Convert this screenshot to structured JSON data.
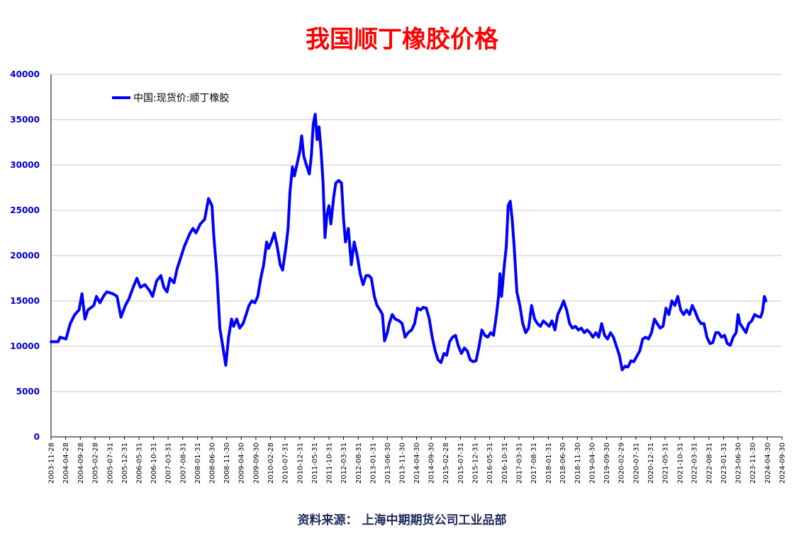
{
  "colors": {
    "title": "#ff0000",
    "series": "#0000ff",
    "yaxis_labels": "#0000cc",
    "grid": "#c8c8c8",
    "source": "#1f2a5a"
  },
  "chart_data": {
    "type": "line",
    "title": "我国顺丁橡胶价格",
    "source": "资料来源：  上海中期期货公司工业品部",
    "xlabel": "",
    "ylabel": "",
    "ylim": [
      0,
      40000
    ],
    "yticks": [
      0,
      5000,
      10000,
      15000,
      20000,
      25000,
      30000,
      35000,
      40000
    ],
    "xlim": [
      "2003-11-28",
      "2024-09-30"
    ],
    "xticks": [
      "2003-11-28",
      "2004-04-28",
      "2004-09-28",
      "2005-02-28",
      "2005-07-31",
      "2005-12-31",
      "2006-05-31",
      "2006-10-31",
      "2007-03-31",
      "2007-08-31",
      "2008-01-31",
      "2008-06-30",
      "2008-11-30",
      "2009-04-30",
      "2009-09-30",
      "2010-02-28",
      "2010-07-31",
      "2010-12-31",
      "2011-05-31",
      "2011-10-31",
      "2012-03-31",
      "2012-08-31",
      "2013-01-31",
      "2013-06-30",
      "2013-11-30",
      "2014-04-30",
      "2014-09-30",
      "2015-02-28",
      "2015-07-31",
      "2015-12-31",
      "2016-05-31",
      "2016-10-31",
      "2017-03-31",
      "2017-08-31",
      "2018-01-31",
      "2018-06-30",
      "2018-11-30",
      "2019-04-30",
      "2019-09-30",
      "2020-02-29",
      "2020-07-31",
      "2020-12-31",
      "2021-05-31",
      "2021-10-31",
      "2022-03-31",
      "2022-08-31",
      "2023-01-31",
      "2023-06-30",
      "2023-11-30",
      "2024-04-30",
      "2024-09-30"
    ],
    "grid": true,
    "legend": "top-left",
    "series": [
      {
        "name": "中国:现货价:顺丁橡胶",
        "points": [
          [
            "2003-11-28",
            10500
          ],
          [
            "2004-02-10",
            10500
          ],
          [
            "2004-03-01",
            11000
          ],
          [
            "2004-05-01",
            10800
          ],
          [
            "2004-06-15",
            12500
          ],
          [
            "2004-08-01",
            13500
          ],
          [
            "2004-09-15",
            14000
          ],
          [
            "2004-10-15",
            15800
          ],
          [
            "2004-11-15",
            13000
          ],
          [
            "2004-12-15",
            14000
          ],
          [
            "2005-02-15",
            14500
          ],
          [
            "2005-03-15",
            15500
          ],
          [
            "2005-04-20",
            14800
          ],
          [
            "2005-06-01",
            15600
          ],
          [
            "2005-07-01",
            16000
          ],
          [
            "2005-09-01",
            15800
          ],
          [
            "2005-10-15",
            15500
          ],
          [
            "2005-11-25",
            13200
          ],
          [
            "2006-01-10",
            14500
          ],
          [
            "2006-02-15",
            15200
          ],
          [
            "2006-04-01",
            16500
          ],
          [
            "2006-05-10",
            17500
          ],
          [
            "2006-06-15",
            16500
          ],
          [
            "2006-08-01",
            16800
          ],
          [
            "2006-09-15",
            16200
          ],
          [
            "2006-10-20",
            15500
          ],
          [
            "2006-12-01",
            17200
          ],
          [
            "2007-01-15",
            17800
          ],
          [
            "2007-02-15",
            16500
          ],
          [
            "2007-03-20",
            16000
          ],
          [
            "2007-04-20",
            17500
          ],
          [
            "2007-06-01",
            17000
          ],
          [
            "2007-07-01",
            18500
          ],
          [
            "2007-08-01",
            19500
          ],
          [
            "2007-09-15",
            21000
          ],
          [
            "2007-11-15",
            22500
          ],
          [
            "2007-12-15",
            23000
          ],
          [
            "2008-01-15",
            22500
          ],
          [
            "2008-03-01",
            23500
          ],
          [
            "2008-04-15",
            24000
          ],
          [
            "2008-05-25",
            26300
          ],
          [
            "2008-06-30",
            25500
          ],
          [
            "2008-07-20",
            22000
          ],
          [
            "2008-08-20",
            18000
          ],
          [
            "2008-09-20",
            12000
          ],
          [
            "2008-10-20",
            10000
          ],
          [
            "2008-11-20",
            7900
          ],
          [
            "2008-12-20",
            11000
          ],
          [
            "2009-01-20",
            13000
          ],
          [
            "2009-02-10",
            12200
          ],
          [
            "2009-03-15",
            13000
          ],
          [
            "2009-04-15",
            12000
          ],
          [
            "2009-05-20",
            12500
          ],
          [
            "2009-06-20",
            13500
          ],
          [
            "2009-07-20",
            14500
          ],
          [
            "2009-08-20",
            15000
          ],
          [
            "2009-09-20",
            14800
          ],
          [
            "2009-10-20",
            15500
          ],
          [
            "2009-11-20",
            17500
          ],
          [
            "2009-12-20",
            19000
          ],
          [
            "2010-01-20",
            21500
          ],
          [
            "2010-02-10",
            20800
          ],
          [
            "2010-03-10",
            21500
          ],
          [
            "2010-04-10",
            22500
          ],
          [
            "2010-05-10",
            21000
          ],
          [
            "2010-06-10",
            19000
          ],
          [
            "2010-07-05",
            18400
          ],
          [
            "2010-08-10",
            21000
          ],
          [
            "2010-08-31",
            23000
          ],
          [
            "2010-09-20",
            27000
          ],
          [
            "2010-10-15",
            29800
          ],
          [
            "2010-11-05",
            28800
          ],
          [
            "2010-12-01",
            30000
          ],
          [
            "2010-12-31",
            31500
          ],
          [
            "2011-01-20",
            33200
          ],
          [
            "2011-02-10",
            31000
          ],
          [
            "2011-03-10",
            30000
          ],
          [
            "2011-04-10",
            29000
          ],
          [
            "2011-04-30",
            31000
          ],
          [
            "2011-05-20",
            34500
          ],
          [
            "2011-06-10",
            35600
          ],
          [
            "2011-06-30",
            32800
          ],
          [
            "2011-07-20",
            34200
          ],
          [
            "2011-08-10",
            31500
          ],
          [
            "2011-08-31",
            28000
          ],
          [
            "2011-09-20",
            22000
          ],
          [
            "2011-10-10",
            24500
          ],
          [
            "2011-10-31",
            25500
          ],
          [
            "2011-11-20",
            23500
          ],
          [
            "2011-12-20",
            26500
          ],
          [
            "2012-01-10",
            28000
          ],
          [
            "2012-02-10",
            28300
          ],
          [
            "2012-03-10",
            28000
          ],
          [
            "2012-03-31",
            24000
          ],
          [
            "2012-04-20",
            21500
          ],
          [
            "2012-05-20",
            23000
          ],
          [
            "2012-06-20",
            19000
          ],
          [
            "2012-07-20",
            21500
          ],
          [
            "2012-08-20",
            20000
          ],
          [
            "2012-09-20",
            18000
          ],
          [
            "2012-10-20",
            16800
          ],
          [
            "2012-11-20",
            17800
          ],
          [
            "2012-12-20",
            17800
          ],
          [
            "2013-01-15",
            17500
          ],
          [
            "2013-02-15",
            15500
          ],
          [
            "2013-03-15",
            14500
          ],
          [
            "2013-04-15",
            14000
          ],
          [
            "2013-05-10",
            13500
          ],
          [
            "2013-06-01",
            10600
          ],
          [
            "2013-06-30",
            11500
          ],
          [
            "2013-07-20",
            12500
          ],
          [
            "2013-08-20",
            13500
          ],
          [
            "2013-09-20",
            13000
          ],
          [
            "2013-11-01",
            12800
          ],
          [
            "2013-12-01",
            12500
          ],
          [
            "2014-01-01",
            11000
          ],
          [
            "2014-02-01",
            11500
          ],
          [
            "2014-03-10",
            11800
          ],
          [
            "2014-04-10",
            12500
          ],
          [
            "2014-05-10",
            14200
          ],
          [
            "2014-06-10",
            14000
          ],
          [
            "2014-07-10",
            14300
          ],
          [
            "2014-08-10",
            14200
          ],
          [
            "2014-09-10",
            13000
          ],
          [
            "2014-10-10",
            11000
          ],
          [
            "2014-11-10",
            9500
          ],
          [
            "2014-12-10",
            8500
          ],
          [
            "2015-01-10",
            8200
          ],
          [
            "2015-02-10",
            9200
          ],
          [
            "2015-03-10",
            9000
          ],
          [
            "2015-04-10",
            10500
          ],
          [
            "2015-05-10",
            11000
          ],
          [
            "2015-06-10",
            11200
          ],
          [
            "2015-07-10",
            10000
          ],
          [
            "2015-08-10",
            9200
          ],
          [
            "2015-09-10",
            9800
          ],
          [
            "2015-10-10",
            9500
          ],
          [
            "2015-11-10",
            8500
          ],
          [
            "2015-12-10",
            8300
          ],
          [
            "2016-01-10",
            8400
          ],
          [
            "2016-02-10",
            10000
          ],
          [
            "2016-03-10",
            11800
          ],
          [
            "2016-04-10",
            11200
          ],
          [
            "2016-05-10",
            11000
          ],
          [
            "2016-06-10",
            11500
          ],
          [
            "2016-07-10",
            11200
          ],
          [
            "2016-08-10",
            13500
          ],
          [
            "2016-08-31",
            15500
          ],
          [
            "2016-09-15",
            18000
          ],
          [
            "2016-10-01",
            15500
          ],
          [
            "2016-10-31",
            19000
          ],
          [
            "2016-11-20",
            21000
          ],
          [
            "2016-12-10",
            25500
          ],
          [
            "2016-12-31",
            26000
          ],
          [
            "2017-01-20",
            24000
          ],
          [
            "2017-02-10",
            21000
          ],
          [
            "2017-03-10",
            16000
          ],
          [
            "2017-04-10",
            14500
          ],
          [
            "2017-05-10",
            12500
          ],
          [
            "2017-06-10",
            11500
          ],
          [
            "2017-07-10",
            12000
          ],
          [
            "2017-08-10",
            14500
          ],
          [
            "2017-09-10",
            13000
          ],
          [
            "2017-10-10",
            12500
          ],
          [
            "2017-11-10",
            12200
          ],
          [
            "2017-12-10",
            12800
          ],
          [
            "2018-01-10",
            12500
          ],
          [
            "2018-02-10",
            12200
          ],
          [
            "2018-03-10",
            12800
          ],
          [
            "2018-04-10",
            11800
          ],
          [
            "2018-05-10",
            13500
          ],
          [
            "2018-06-10",
            14200
          ],
          [
            "2018-07-10",
            15000
          ],
          [
            "2018-08-10",
            14000
          ],
          [
            "2018-09-10",
            12500
          ],
          [
            "2018-10-10",
            12000
          ],
          [
            "2018-11-10",
            12200
          ],
          [
            "2018-12-10",
            11800
          ],
          [
            "2019-01-10",
            12000
          ],
          [
            "2019-02-10",
            11500
          ],
          [
            "2019-03-10",
            11800
          ],
          [
            "2019-04-10",
            11500
          ],
          [
            "2019-05-10",
            11000
          ],
          [
            "2019-06-10",
            11500
          ],
          [
            "2019-07-10",
            11000
          ],
          [
            "2019-08-10",
            12500
          ],
          [
            "2019-09-10",
            11200
          ],
          [
            "2019-10-10",
            10800
          ],
          [
            "2019-11-10",
            11500
          ],
          [
            "2019-12-10",
            11000
          ],
          [
            "2020-01-10",
            10000
          ],
          [
            "2020-02-10",
            9000
          ],
          [
            "2020-03-10",
            7400
          ],
          [
            "2020-04-10",
            7800
          ],
          [
            "2020-05-10",
            7700
          ],
          [
            "2020-06-10",
            8400
          ],
          [
            "2020-07-10",
            8300
          ],
          [
            "2020-08-10",
            8900
          ],
          [
            "2020-09-10",
            9500
          ],
          [
            "2020-10-10",
            10800
          ],
          [
            "2020-11-10",
            11000
          ],
          [
            "2020-12-10",
            10800
          ],
          [
            "2021-01-10",
            11500
          ],
          [
            "2021-02-10",
            13000
          ],
          [
            "2021-03-10",
            12500
          ],
          [
            "2021-04-10",
            12000
          ],
          [
            "2021-05-10",
            12200
          ],
          [
            "2021-06-10",
            14200
          ],
          [
            "2021-07-10",
            13500
          ],
          [
            "2021-08-10",
            15000
          ],
          [
            "2021-09-10",
            14500
          ],
          [
            "2021-10-10",
            15500
          ],
          [
            "2021-11-10",
            14000
          ],
          [
            "2021-12-10",
            13500
          ],
          [
            "2022-01-10",
            14000
          ],
          [
            "2022-02-10",
            13500
          ],
          [
            "2022-03-10",
            14500
          ],
          [
            "2022-04-10",
            13800
          ],
          [
            "2022-05-10",
            13000
          ],
          [
            "2022-06-10",
            12500
          ],
          [
            "2022-07-10",
            12500
          ],
          [
            "2022-08-10",
            11000
          ],
          [
            "2022-09-10",
            10300
          ],
          [
            "2022-10-10",
            10400
          ],
          [
            "2022-11-10",
            11500
          ],
          [
            "2022-12-10",
            11500
          ],
          [
            "2023-01-10",
            11000
          ],
          [
            "2023-02-10",
            11200
          ],
          [
            "2023-03-10",
            10300
          ],
          [
            "2023-04-10",
            10100
          ],
          [
            "2023-05-10",
            11000
          ],
          [
            "2023-06-10",
            11500
          ],
          [
            "2023-06-30",
            13500
          ],
          [
            "2023-07-20",
            12500
          ],
          [
            "2023-08-20",
            12000
          ],
          [
            "2023-09-20",
            11500
          ],
          [
            "2023-10-20",
            12500
          ],
          [
            "2023-11-20",
            12800
          ],
          [
            "2023-12-20",
            13500
          ],
          [
            "2024-01-20",
            13300
          ],
          [
            "2024-02-20",
            13200
          ],
          [
            "2024-03-10",
            13800
          ],
          [
            "2024-03-31",
            15500
          ],
          [
            "2024-04-15",
            15000
          ]
        ]
      }
    ]
  }
}
